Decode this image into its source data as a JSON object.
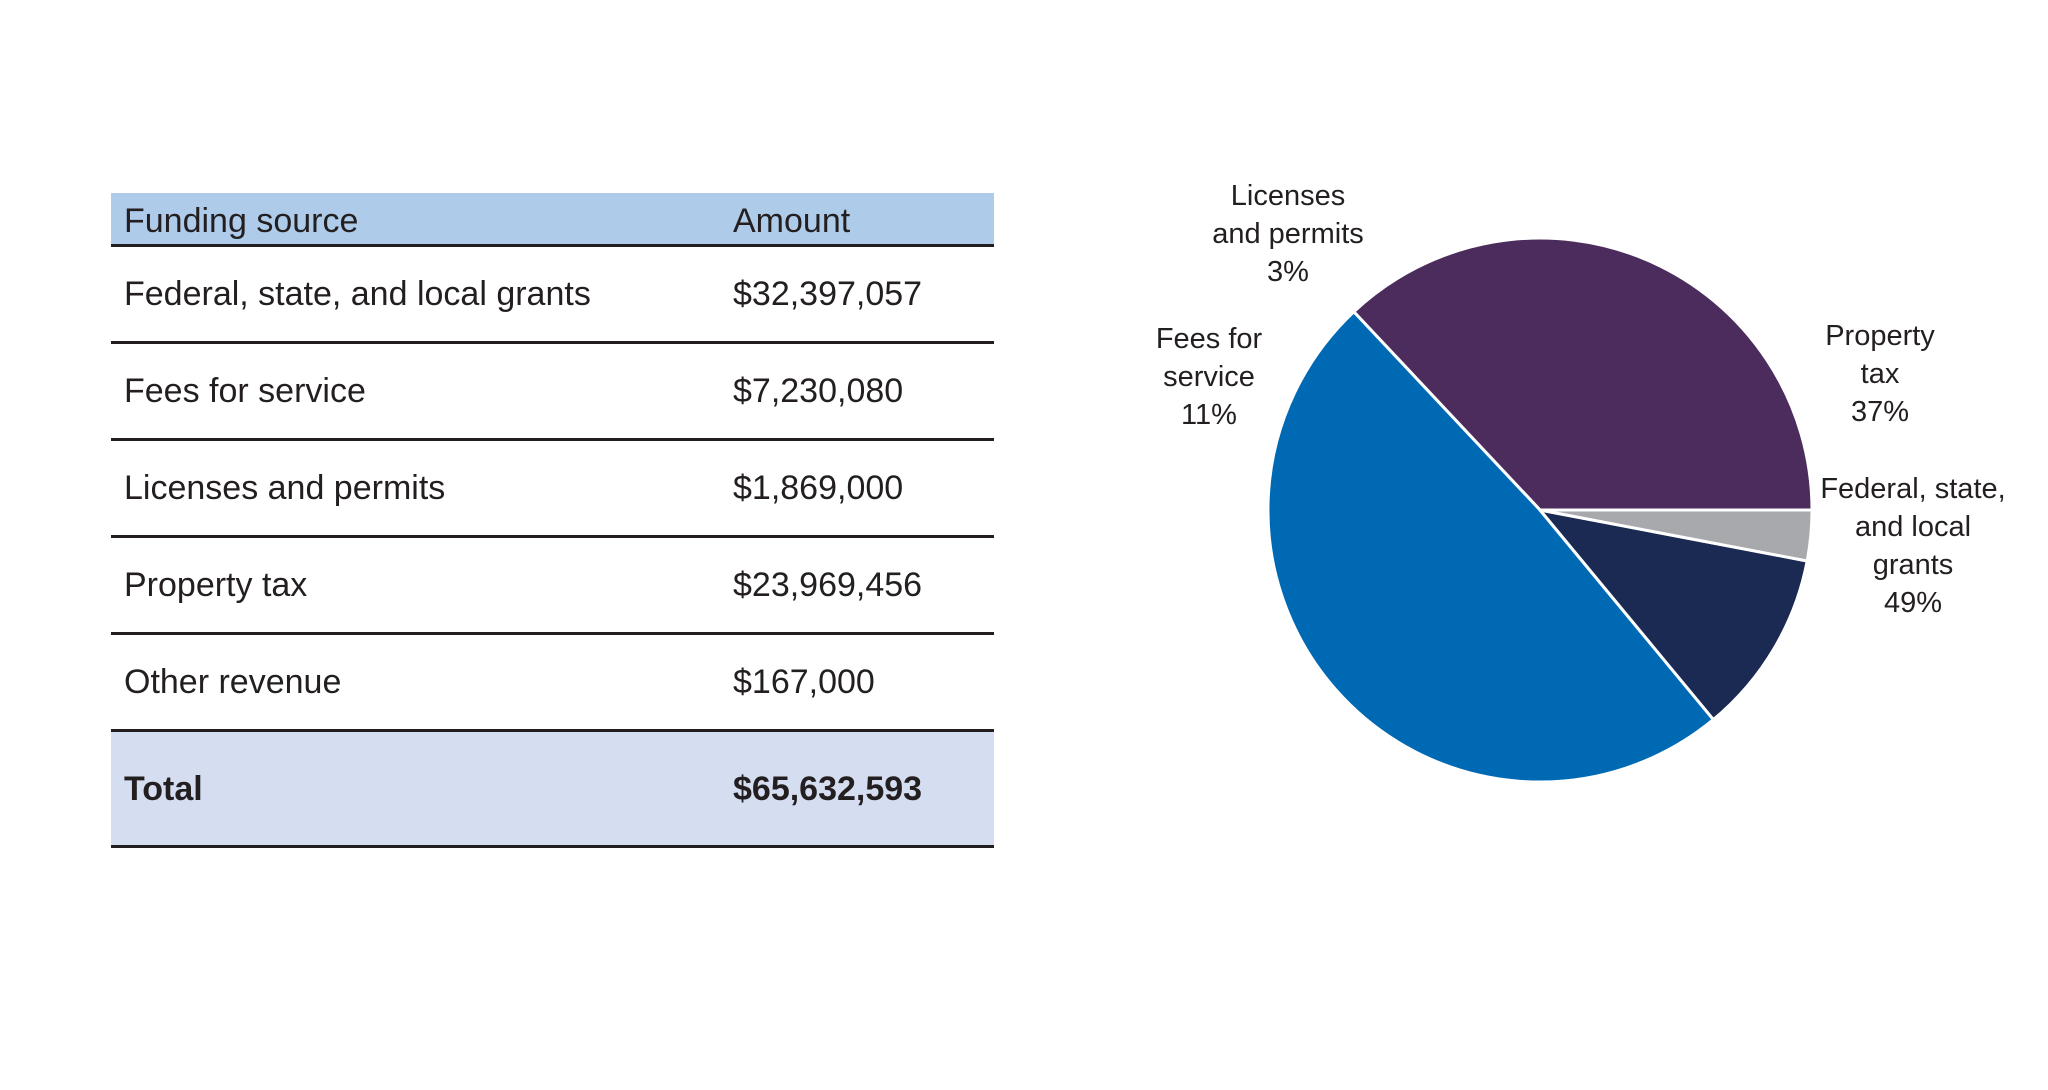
{
  "table": {
    "header": {
      "source": "Funding source",
      "amount": "Amount"
    },
    "rows": [
      {
        "source": "Federal, state, and local grants",
        "amount": "$32,397,057"
      },
      {
        "source": "Fees for service",
        "amount": "$7,230,080"
      },
      {
        "source": "Licenses and permits",
        "amount": "$1,869,000"
      },
      {
        "source": "Property tax",
        "amount": "$23,969,456"
      },
      {
        "source": "Other revenue",
        "amount": "$167,000"
      }
    ],
    "total": {
      "source": "Total",
      "amount": "$65,632,593"
    },
    "colors": {
      "header_bg": "#aecbea",
      "total_bg": "#d5ddf1"
    }
  },
  "chart_data": {
    "type": "pie",
    "slices": [
      {
        "label_lines": [
          "Property",
          "tax"
        ],
        "percent_label": "37%",
        "value": 37,
        "color": "#4b2c5c"
      },
      {
        "label_lines": [
          "Federal, state,",
          "and local",
          "grants"
        ],
        "percent_label": "49%",
        "value": 49,
        "color": "#0069b4"
      },
      {
        "label_lines": [
          "Fees for",
          "service"
        ],
        "percent_label": "11%",
        "value": 11,
        "color": "#1b2a52"
      },
      {
        "label_lines": [
          "Licenses",
          "and permits"
        ],
        "percent_label": "3%",
        "value": 3,
        "color": "#a7a9ac"
      }
    ],
    "start": "3 o'clock",
    "direction": "counterclockwise from Property tax",
    "legend": "none (labels beside slices)"
  }
}
